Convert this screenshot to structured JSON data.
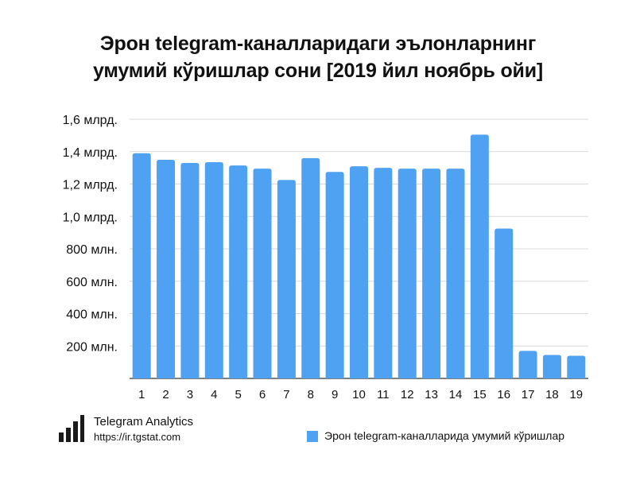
{
  "chart_data": {
    "type": "bar",
    "title_lines": [
      "Эрон telegram-каналларидаги эълонларнинг",
      "умумий кўришлар сони [2019 йил ноябрь ойи]"
    ],
    "categories": [
      "1",
      "2",
      "3",
      "4",
      "5",
      "6",
      "7",
      "8",
      "9",
      "10",
      "11",
      "12",
      "13",
      "14",
      "15",
      "16",
      "17",
      "18",
      "19"
    ],
    "series": [
      {
        "name": "Эрон telegram-каналларида умумий кўришлар",
        "values": [
          1390,
          1350,
          1330,
          1335,
          1315,
          1295,
          1225,
          1360,
          1275,
          1310,
          1300,
          1295,
          1295,
          1295,
          1505,
          925,
          170,
          145,
          140
        ],
        "color": "#4ea2f1"
      }
    ],
    "unit": "million views",
    "ylim": [
      0,
      1600
    ],
    "yticks": [
      {
        "value": 200,
        "label": "200 млн."
      },
      {
        "value": 400,
        "label": "400 млн."
      },
      {
        "value": 600,
        "label": "600 млн."
      },
      {
        "value": 800,
        "label": "800 млн."
      },
      {
        "value": 1000,
        "label": "1,0 млрд."
      },
      {
        "value": 1200,
        "label": "1,2 млрд."
      },
      {
        "value": 1400,
        "label": "1,4 млрд."
      },
      {
        "value": 1600,
        "label": "1,6 млрд."
      }
    ],
    "grid": true,
    "legend_position": "bottom-right"
  },
  "branding": {
    "name": "Telegram Analytics",
    "url": "https://ir.tgstat.com",
    "icon": "bar-chart-logo-icon"
  },
  "colors": {
    "bar": "#4ea2f1",
    "grid": "#d9d9d9",
    "axis": "#333333",
    "text": "#111111"
  }
}
